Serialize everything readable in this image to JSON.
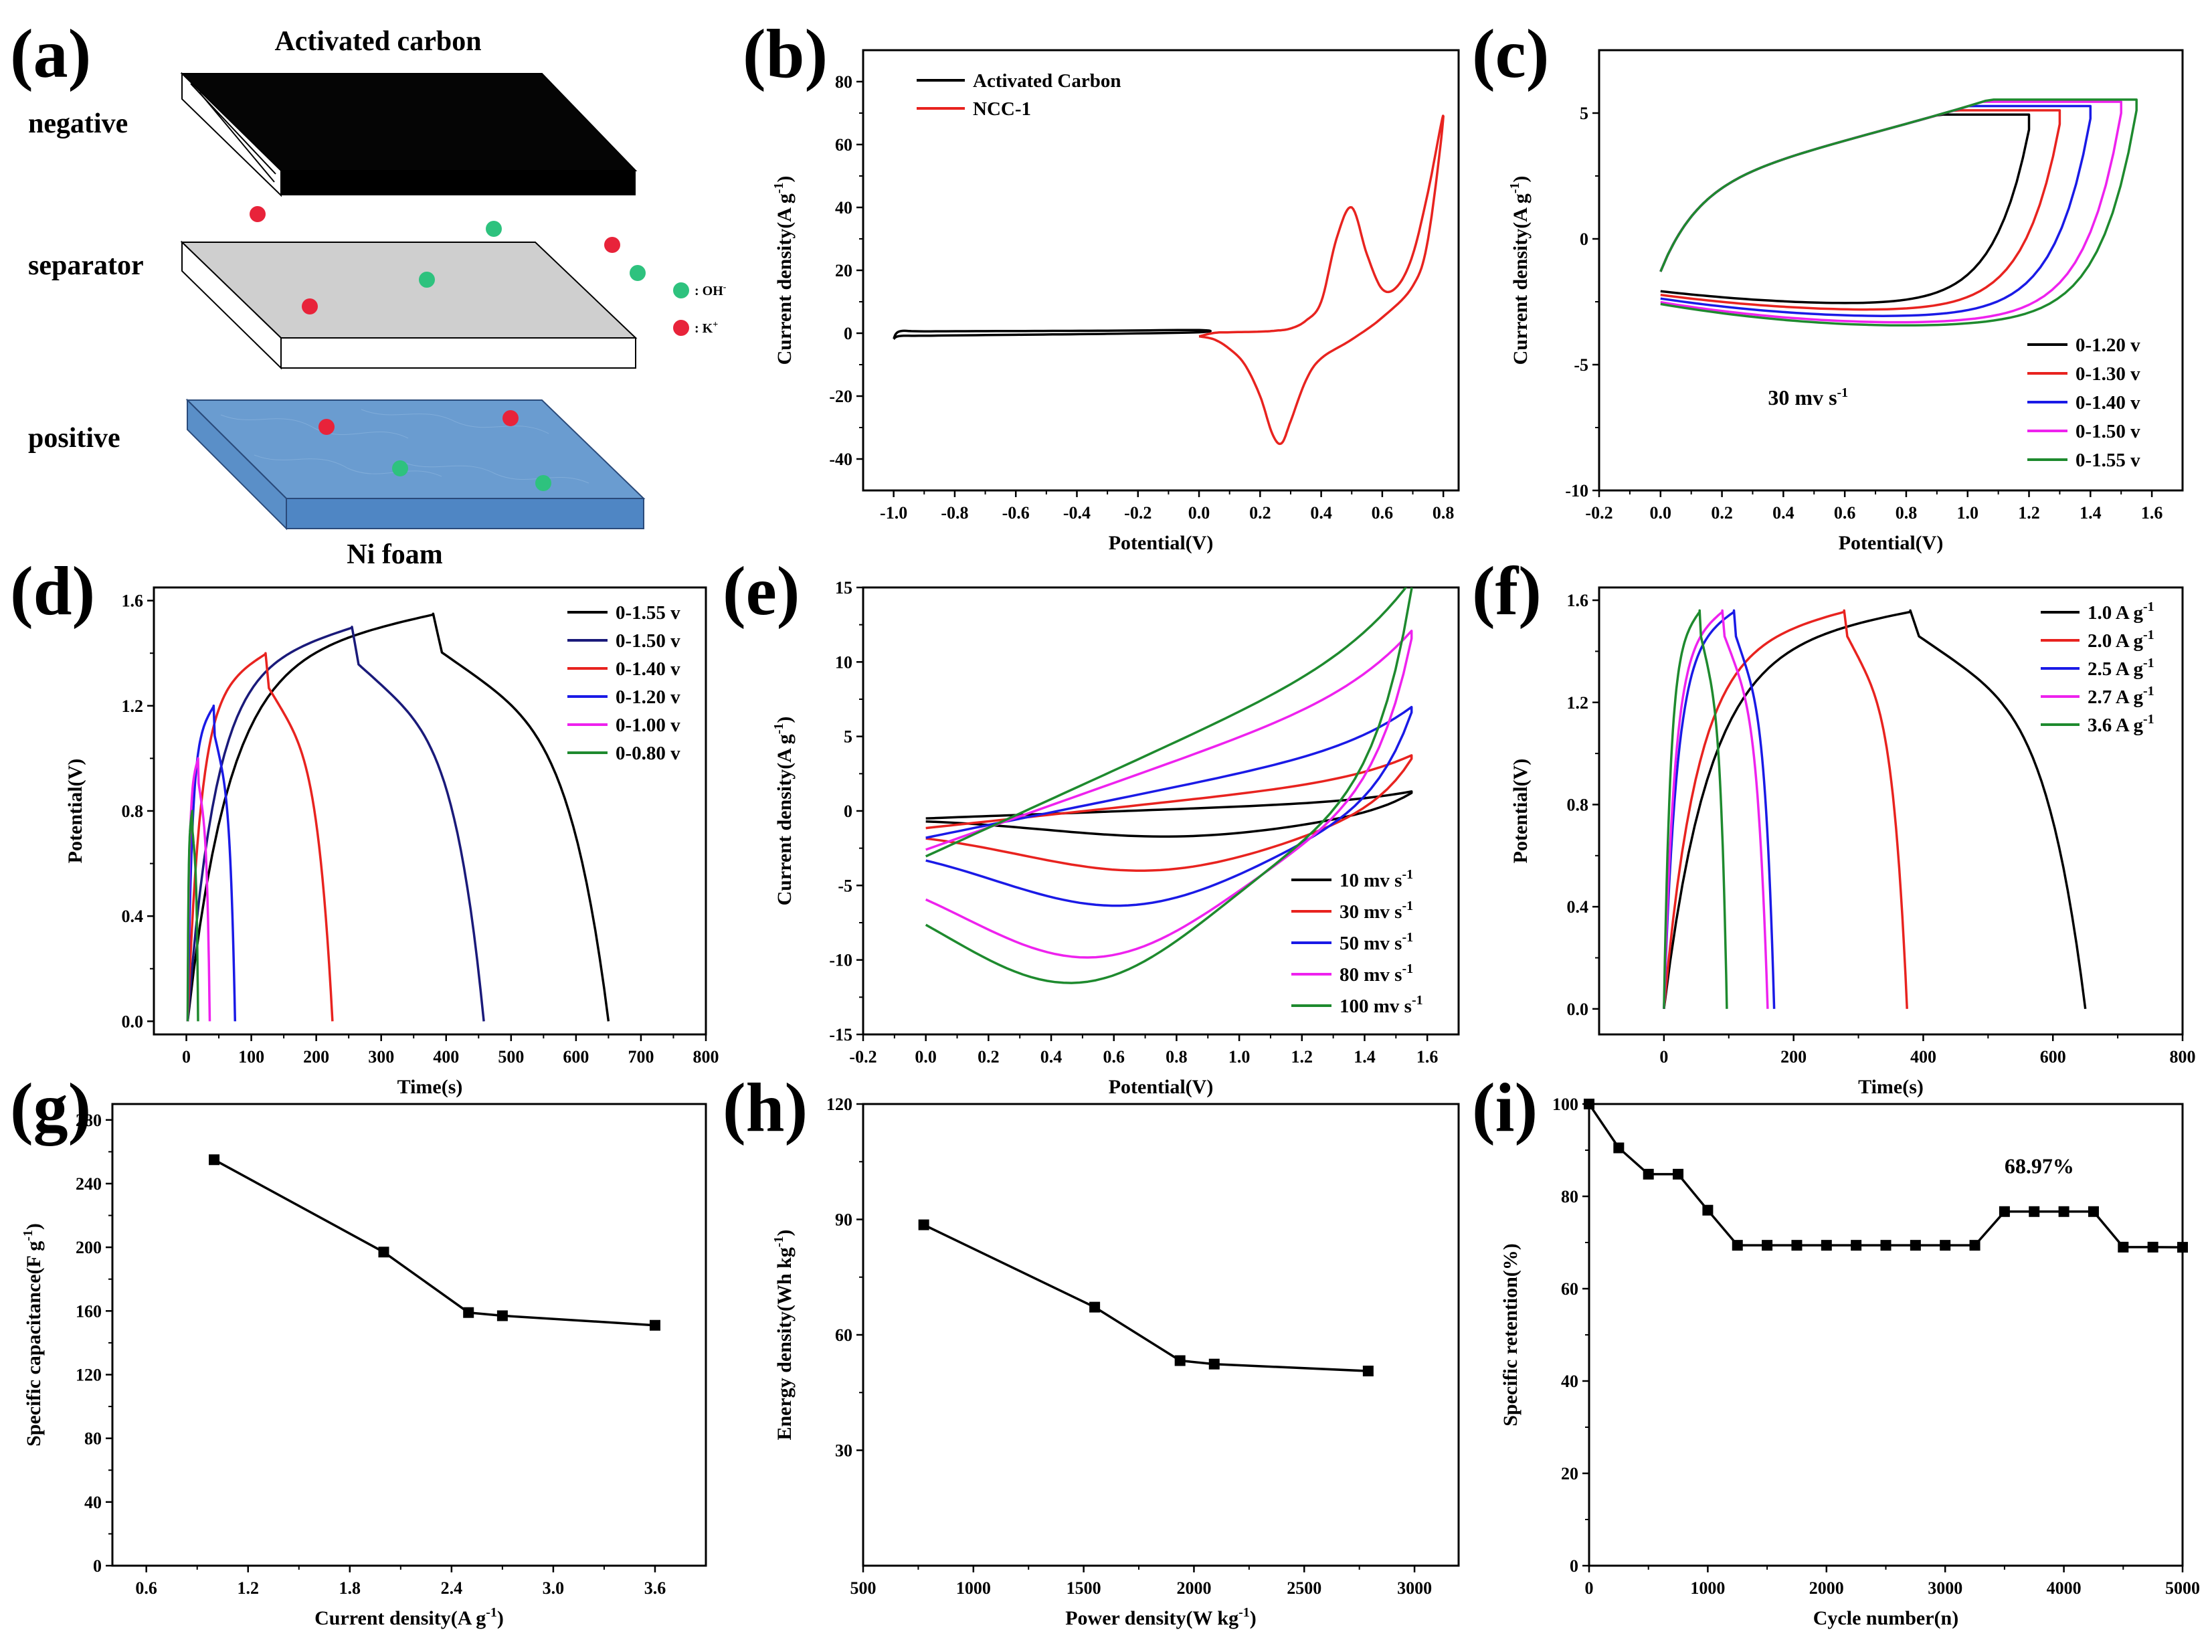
{
  "colors": {
    "black": "#000000",
    "red": "#e8231f",
    "blue": "#1a1ae6",
    "magenta": "#ee22ee",
    "green": "#1e8a2e",
    "navy": "#1a1a7a",
    "ni_foam": "#6a9cd0",
    "separator": "#cfcfcf",
    "oh_ion": "#2ec27e",
    "k_ion": "#e8233a"
  },
  "panel_labels": [
    "(a)",
    "(b)",
    "(c)",
    "(d)",
    "(e)",
    "(f)",
    "(g)",
    "(h)",
    "(i)"
  ],
  "scheme": {
    "title": "Activated carbon",
    "negative": "negative",
    "separator": "separator",
    "positive": "positive",
    "substrate": "Ni foam",
    "oh_label": ": OH",
    "oh_sup": "-",
    "k_label": ": K",
    "k_sup": "+"
  },
  "chart_data": [
    {
      "id": "b",
      "type": "line",
      "xlabel": "Potential(V)",
      "ylabel_main": "Current density(A g",
      "ylabel_sup": "-1",
      "ylabel_end": ")",
      "xlim": [
        -1.1,
        0.85
      ],
      "ylim": [
        -50,
        90
      ],
      "xticks": [
        -1.0,
        -0.8,
        -0.6,
        -0.4,
        -0.2,
        0.0,
        0.2,
        0.4,
        0.6,
        0.8
      ],
      "xticklabels": [
        "-1.0",
        "-0.8",
        "-0.6",
        "-0.4",
        "-0.2",
        "0.0",
        "0.2",
        "0.4",
        "0.6",
        "0.8"
      ],
      "yticks": [
        -40,
        -20,
        0,
        20,
        40,
        60,
        80
      ],
      "yticklabels": [
        "-40",
        "-20",
        "0",
        "20",
        "40",
        "60",
        "80"
      ],
      "legend_position": "top-left",
      "series": [
        {
          "name": "Activated Carbon",
          "color": "#000000",
          "x": [
            -1.0,
            -0.98,
            -0.9,
            -0.6,
            -0.3,
            0.0,
            0.0,
            -0.3,
            -0.6,
            -0.9,
            -0.98,
            -1.0
          ],
          "y": [
            -1.8,
            -0.9,
            -0.8,
            -0.5,
            -0.2,
            0.3,
            1.0,
            0.8,
            0.7,
            0.6,
            0.6,
            -1.8
          ]
        },
        {
          "name": "NCC-1",
          "color": "#e8231f",
          "x": [
            0.0,
            0.05,
            0.1,
            0.15,
            0.2,
            0.24,
            0.27,
            0.3,
            0.35,
            0.4,
            0.5,
            0.6,
            0.7,
            0.75,
            0.8,
            0.75,
            0.7,
            0.65,
            0.6,
            0.55,
            0.5,
            0.45,
            0.4,
            0.35,
            0.3,
            0.25,
            0.2,
            0.1,
            0.05,
            0.0
          ],
          "y": [
            -1,
            -2,
            -5,
            -10,
            -20,
            -32,
            -35,
            -28,
            -15,
            -8,
            -2,
            5,
            15,
            30,
            69,
            45,
            25,
            15,
            14,
            25,
            40,
            30,
            10,
            4,
            1.5,
            0.8,
            0.5,
            0.3,
            0.1,
            -1
          ]
        }
      ]
    },
    {
      "id": "c",
      "type": "line",
      "xlabel": "Potential(V)",
      "ylabel_main": "Current density(A g",
      "ylabel_sup": "-1",
      "ylabel_end": ")",
      "xlim": [
        -0.2,
        1.7
      ],
      "ylim": [
        -10,
        7.5
      ],
      "xticks": [
        -0.2,
        0.0,
        0.2,
        0.4,
        0.6,
        0.8,
        1.0,
        1.2,
        1.4,
        1.6
      ],
      "xticklabels": [
        "-0.2",
        "0.0",
        "0.2",
        "0.4",
        "0.6",
        "0.8",
        "1.0",
        "1.2",
        "1.4",
        "1.6"
      ],
      "yticks": [
        -10,
        -5,
        0,
        5
      ],
      "yticklabels": [
        "-10",
        "-5",
        "0",
        "5"
      ],
      "annotation": "30 mv s",
      "annotation_sup": "-1",
      "legend_position": "bottom-right",
      "series": [
        {
          "name": "0-1.20  v",
          "color": "#000000",
          "vmax": 1.2
        },
        {
          "name": "0-1.30  v",
          "color": "#e8231f",
          "vmax": 1.3
        },
        {
          "name": "0-1.40  v",
          "color": "#1a1ae6",
          "vmax": 1.4
        },
        {
          "name": "0-1.50  v",
          "color": "#ee22ee",
          "vmax": 1.5
        },
        {
          "name": "0-1.55  v",
          "color": "#1e8a2e",
          "vmax": 1.55
        }
      ]
    },
    {
      "id": "d",
      "type": "line",
      "xlabel": "Time(s)",
      "ylabel_main": "Potential(V)",
      "xlim": [
        -50,
        800
      ],
      "ylim": [
        -0.05,
        1.65
      ],
      "xticks": [
        0,
        100,
        200,
        300,
        400,
        500,
        600,
        700,
        800
      ],
      "xticklabels": [
        "0",
        "100",
        "200",
        "300",
        "400",
        "500",
        "600",
        "700",
        "800"
      ],
      "yticks": [
        0.0,
        0.4,
        0.8,
        1.2,
        1.6
      ],
      "yticklabels": [
        "0.0",
        "0.4",
        "0.8",
        "1.2",
        "1.6"
      ],
      "legend_position": "top-right",
      "series": [
        {
          "name": "0-1.55  v",
          "color": "#000000",
          "vmax": 1.55,
          "t_peak": 380,
          "t_end": 650
        },
        {
          "name": "0-1.50  v",
          "color": "#1a1a7a",
          "vmax": 1.5,
          "t_peak": 255,
          "t_end": 458
        },
        {
          "name": "0-1.40  v",
          "color": "#e8231f",
          "vmax": 1.4,
          "t_peak": 122,
          "t_end": 225
        },
        {
          "name": "0-1.20  v",
          "color": "#1a1ae6",
          "vmax": 1.2,
          "t_peak": 42,
          "t_end": 75
        },
        {
          "name": "0-1.00  v",
          "color": "#ee22ee",
          "vmax": 1.0,
          "t_peak": 18,
          "t_end": 36
        },
        {
          "name": "0-0.80  v",
          "color": "#1e8a2e",
          "vmax": 0.8,
          "t_peak": 9,
          "t_end": 18
        }
      ]
    },
    {
      "id": "e",
      "type": "line",
      "xlabel": "Potential(V)",
      "ylabel_main": "Current density(A g",
      "ylabel_sup": "-1",
      "ylabel_end": ")",
      "xlim": [
        -0.2,
        1.7
      ],
      "ylim": [
        -15,
        15
      ],
      "xticks": [
        -0.2,
        0.0,
        0.2,
        0.4,
        0.6,
        0.8,
        1.0,
        1.2,
        1.4,
        1.6
      ],
      "xticklabels": [
        "-0.2",
        "0.0",
        "0.2",
        "0.4",
        "0.6",
        "0.8",
        "1.0",
        "1.2",
        "1.4",
        "1.6"
      ],
      "yticks": [
        -15,
        -10,
        -5,
        0,
        5,
        10,
        15
      ],
      "yticklabels": [
        "-15",
        "-10",
        "-5",
        "0",
        "5",
        "10",
        "15"
      ],
      "legend_position": "bottom-right",
      "series": [
        {
          "name": "10  mv s",
          "sup": "-1",
          "color": "#000000",
          "k": 1.0
        },
        {
          "name": "30  mv s",
          "sup": "-1",
          "color": "#e8231f",
          "k": 2.3
        },
        {
          "name": "50  mv s",
          "sup": "-1",
          "color": "#1a1ae6",
          "k": 3.6
        },
        {
          "name": "80  mv s",
          "sup": "-1",
          "color": "#ee22ee",
          "k": 5.2
        },
        {
          "name": "100 mv s",
          "sup": "-1",
          "color": "#1e8a2e",
          "k": 6.1
        }
      ]
    },
    {
      "id": "f",
      "type": "line",
      "xlabel": "Time(s)",
      "ylabel_main": "Potential(V)",
      "xlim": [
        -100,
        800
      ],
      "ylim": [
        -0.1,
        1.65
      ],
      "xticks": [
        0,
        200,
        400,
        600,
        800
      ],
      "xticklabels": [
        "0",
        "200",
        "400",
        "600",
        "800"
      ],
      "yticks": [
        0.0,
        0.4,
        0.8,
        1.2,
        1.6
      ],
      "yticklabels": [
        "0.0",
        "0.4",
        "0.8",
        "1.2",
        "1.6"
      ],
      "legend_position": "top-right",
      "series": [
        {
          "name": "1.0 A g",
          "sup": "-1",
          "color": "#000000",
          "t_peak": 380,
          "t_end": 650
        },
        {
          "name": "2.0 A g",
          "sup": "-1",
          "color": "#e8231f",
          "t_peak": 278,
          "t_end": 375
        },
        {
          "name": "2.5 A g",
          "sup": "-1",
          "color": "#1a1ae6",
          "t_peak": 108,
          "t_end": 170
        },
        {
          "name": "2.7 A g",
          "sup": "-1",
          "color": "#ee22ee",
          "t_peak": 90,
          "t_end": 160
        },
        {
          "name": "3.6 A g",
          "sup": "-1",
          "color": "#1e8a2e",
          "t_peak": 55,
          "t_end": 97
        }
      ]
    },
    {
      "id": "g",
      "type": "line",
      "xlabel_main": "Current density(A g",
      "xlabel_sup": "-1",
      "xlabel_end": ")",
      "ylabel_main": "Specific capacitance(F g",
      "ylabel_sup": "-1",
      "ylabel_end": ")",
      "xlim": [
        0.4,
        3.9
      ],
      "ylim": [
        0,
        290
      ],
      "xticks": [
        0.6,
        1.2,
        1.8,
        2.4,
        3.0,
        3.6
      ],
      "xticklabels": [
        "0.6",
        "1.2",
        "1.8",
        "2.4",
        "3.0",
        "3.6"
      ],
      "yticks": [
        0,
        40,
        80,
        120,
        160,
        200,
        240,
        280
      ],
      "yticklabels": [
        "0",
        "40",
        "80",
        "120",
        "160",
        "200",
        "240",
        "280"
      ],
      "series": [
        {
          "name": "capacitance",
          "color": "#000000",
          "x": [
            1.0,
            2.0,
            2.5,
            2.7,
            3.6
          ],
          "y": [
            255,
            197,
            159,
            157,
            151
          ]
        }
      ]
    },
    {
      "id": "h",
      "type": "line",
      "xlabel_main": "Power density(W kg",
      "xlabel_sup": "-1",
      "xlabel_end": ")",
      "ylabel_main": "Energy density(Wh kg",
      "ylabel_sup": "-1",
      "ylabel_end": ")",
      "xlim": [
        500,
        3200
      ],
      "ylim": [
        0,
        120
      ],
      "xticks": [
        500,
        1000,
        1500,
        2000,
        2500,
        3000
      ],
      "xticklabels": [
        "500",
        "1000",
        "1500",
        "2000",
        "2500",
        "3000"
      ],
      "yticks": [
        30,
        60,
        90,
        120
      ],
      "yticklabels": [
        "30",
        "60",
        "90",
        "120"
      ],
      "series": [
        {
          "name": "ragone",
          "color": "#000000",
          "x": [
            775,
            1550,
            1937,
            2092,
            2790
          ],
          "y": [
            88.6,
            67.2,
            53.3,
            52.4,
            50.6
          ]
        }
      ]
    },
    {
      "id": "i",
      "type": "line",
      "xlabel": "Cycle number(n)",
      "ylabel_main": "Specific retention(%)",
      "xlim": [
        0,
        5000
      ],
      "ylim": [
        0,
        100
      ],
      "xticks": [
        0,
        1000,
        2000,
        3000,
        4000,
        5000
      ],
      "xticklabels": [
        "0",
        "1000",
        "2000",
        "3000",
        "4000",
        "5000"
      ],
      "yticks": [
        0,
        20,
        40,
        60,
        80,
        100
      ],
      "yticklabels": [
        "0",
        "20",
        "40",
        "60",
        "80",
        "100"
      ],
      "annotation": "68.97%",
      "series": [
        {
          "name": "retention",
          "color": "#000000",
          "x": [
            0,
            250,
            500,
            750,
            1000,
            1250,
            1500,
            1750,
            2000,
            2250,
            2500,
            2750,
            3000,
            3250,
            3500,
            3750,
            4000,
            4250,
            4500,
            4750,
            5000
          ],
          "y": [
            100,
            90.5,
            84.8,
            84.8,
            77,
            69.4,
            69.4,
            69.4,
            69.4,
            69.4,
            69.4,
            69.4,
            69.4,
            69.4,
            76.7,
            76.7,
            76.7,
            76.7,
            69,
            69,
            68.97
          ]
        }
      ]
    }
  ]
}
